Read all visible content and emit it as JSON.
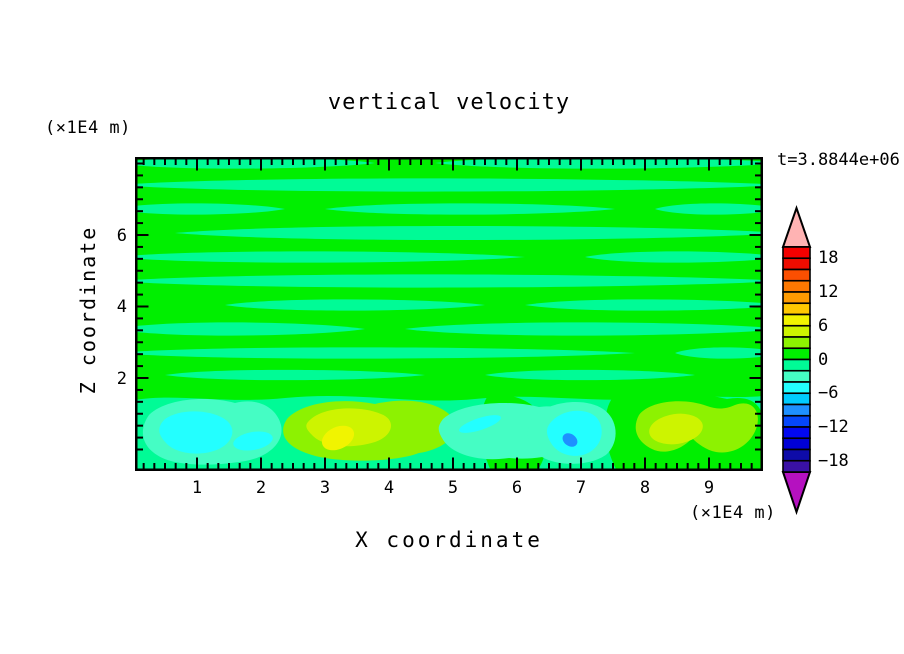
{
  "header": {
    "title": "vertical velocity",
    "time_label": "t=3.8844e+06"
  },
  "axes": {
    "x": {
      "label": "X coordinate",
      "unit_label": "(×1E4 m)",
      "major_tick_labels": [
        "1",
        "2",
        "3",
        "4",
        "5",
        "6",
        "7",
        "8",
        "9"
      ],
      "range_approx": [
        0,
        9.8
      ],
      "minor_ticks_per_unit": 6
    },
    "z": {
      "label": "Z coordinate",
      "unit_label": "(×1E4 m)",
      "major_tick_labels": [
        "6",
        "4",
        "2"
      ],
      "range_approx": [
        0,
        8.2
      ],
      "minor_ticks_per_major": 6
    }
  },
  "chart_data": {
    "type": "heatmap",
    "subtype": "filled-contour",
    "title": "vertical velocity",
    "xlabel": "X coordinate (×1E4 m)",
    "ylabel": "Z coordinate (×1E4 m)",
    "time_annotation": "t=3.8844e+06",
    "grid": false,
    "legend_position": "right-colorbar",
    "colorbar": {
      "max": 20,
      "min": -20,
      "band_step": 2,
      "tick_values": [
        18,
        12,
        6,
        0,
        -6,
        -12,
        -18
      ],
      "tick_labels": [
        "18",
        "12",
        "6",
        "0",
        "−6",
        "−12",
        "−18"
      ],
      "over_color": "#ffb3b3",
      "under_color": "#b511c0",
      "bands": [
        {
          "from": 18,
          "to": 20,
          "color": "#f40000"
        },
        {
          "from": 16,
          "to": 18,
          "color": "#ee0c00"
        },
        {
          "from": 14,
          "to": 16,
          "color": "#fb4f01"
        },
        {
          "from": 12,
          "to": 14,
          "color": "#fd7801"
        },
        {
          "from": 10,
          "to": 12,
          "color": "#fe9b01"
        },
        {
          "from": 8,
          "to": 10,
          "color": "#ffc801"
        },
        {
          "from": 6,
          "to": 8,
          "color": "#f1f400"
        },
        {
          "from": 4,
          "to": 6,
          "color": "#cdf400"
        },
        {
          "from": 2,
          "to": 4,
          "color": "#8df201"
        },
        {
          "from": 0,
          "to": 2,
          "color": "#00ef00"
        },
        {
          "from": -2,
          "to": 0,
          "color": "#00fb96"
        },
        {
          "from": -4,
          "to": -2,
          "color": "#45fdc4"
        },
        {
          "from": -6,
          "to": -4,
          "color": "#23ffff"
        },
        {
          "from": -8,
          "to": -6,
          "color": "#00ccff"
        },
        {
          "from": -10,
          "to": -8,
          "color": "#1e90ff"
        },
        {
          "from": -12,
          "to": -10,
          "color": "#0547fb"
        },
        {
          "from": -14,
          "to": -12,
          "color": "#0208f0"
        },
        {
          "from": -16,
          "to": -14,
          "color": "#0000d6"
        },
        {
          "from": -18,
          "to": -16,
          "color": "#0e0ba8"
        },
        {
          "from": -20,
          "to": -18,
          "color": "#3a11a5"
        }
      ]
    },
    "palette": {
      "green": "#00ef00",
      "spring": "#00fb96",
      "aqua": "#45fdc4",
      "cyan": "#23ffff",
      "blue": "#1e90ff",
      "chartreuse": "#8df201",
      "yellowgreen": "#cdf400",
      "yellow": "#f1f400"
    },
    "field_features": [
      {
        "region": "z ≈ 2.3–8 (whole width)",
        "description": "alternating thin horizontal streaks of w in [0,2] (green) and [−2,0] (spring green)"
      },
      {
        "region": "x ≈ 0.2–2.3, z < 2",
        "description": "downdraft cell, w down to −6…−4 (aquamarine with cyan core)"
      },
      {
        "region": "x ≈ 2.4–5, z < 2",
        "description": "updraft cell, w up to +6…+8 (chartreuse ring, yellow-green and yellow core)"
      },
      {
        "region": "x ≈ 4.8–5.6, z < 2",
        "description": "weak downdraft, w ≈ −4…−2 with small −6…−4 streak"
      },
      {
        "region": "x ≈ 6–7.3, z < 2",
        "description": "downdraft, w ≈ −6…−4 (cyan) with local spot w ≈ −9 (blue)"
      },
      {
        "region": "x ≈ 7.8–9.7, z < 2",
        "description": "broad updraft, w up to +4…+6 (green/chartreuse with yellow-green core)"
      }
    ]
  }
}
